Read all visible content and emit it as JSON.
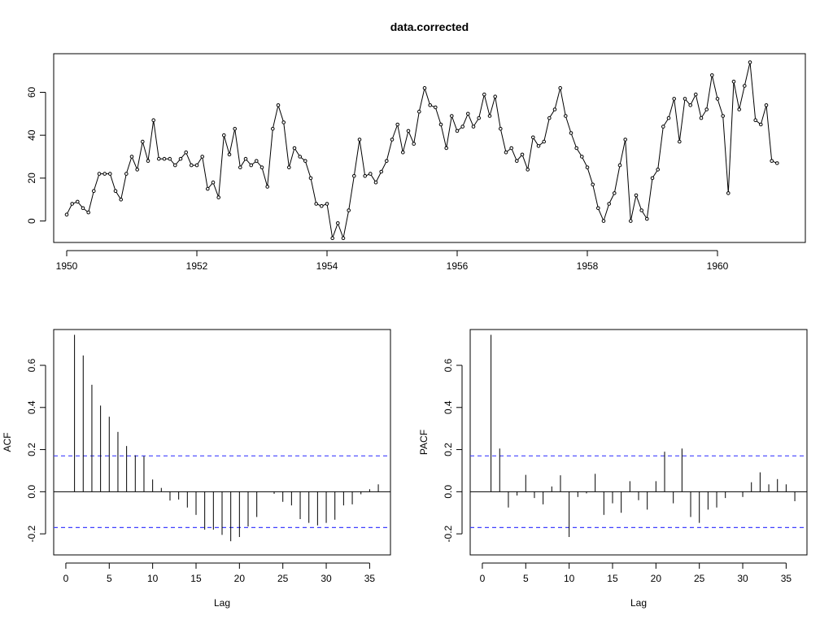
{
  "chart_data": [
    {
      "type": "line",
      "title": "data.corrected",
      "xlabel": "",
      "ylabel": "",
      "xlim": [
        1949.8,
        1961.35
      ],
      "ylim": [
        -10,
        78
      ],
      "x_ticks": [
        1950,
        1952,
        1954,
        1956,
        1958,
        1960
      ],
      "y_ticks": [
        0,
        20,
        40,
        60
      ],
      "markers": "open-circle",
      "series": [
        {
          "x_start": 1950.0,
          "x_step": 0.08333333,
          "values": [
            3,
            8,
            9,
            6,
            4,
            14,
            22,
            22,
            22,
            14,
            10,
            22,
            30,
            24,
            37,
            28,
            47,
            29,
            29,
            29,
            26,
            29,
            32,
            26,
            26,
            30,
            15,
            18,
            11,
            40,
            31,
            43,
            25,
            29,
            26,
            28,
            25,
            16,
            43,
            54,
            46,
            25,
            34,
            30,
            28,
            20,
            8,
            7,
            8,
            -8,
            -1,
            -8,
            5,
            21,
            38,
            21,
            22,
            18,
            23,
            28,
            38,
            45,
            32,
            42,
            36,
            51,
            62,
            54,
            53,
            45,
            34,
            49,
            42,
            44,
            50,
            44,
            48,
            59,
            49,
            58,
            43,
            32,
            34,
            28,
            31,
            24,
            39,
            35,
            37,
            48,
            52,
            62,
            49,
            41,
            34,
            30,
            25,
            17,
            6,
            0,
            8,
            13,
            26,
            38,
            0,
            12,
            5,
            1,
            20,
            24,
            44,
            48,
            57,
            37,
            57,
            54,
            59,
            48,
            52,
            68,
            57,
            49,
            13,
            65,
            52,
            63,
            74,
            47,
            45,
            54,
            28,
            27
          ]
        }
      ]
    },
    {
      "type": "bar",
      "subtype": "acf",
      "title": "",
      "xlabel": "Lag",
      "ylabel": "ACF",
      "xlim": [
        -1.4,
        37.4
      ],
      "ylim": [
        -0.3,
        0.77
      ],
      "x_ticks": [
        0,
        5,
        10,
        15,
        20,
        25,
        30,
        35
      ],
      "y_ticks": [
        -0.2,
        0.0,
        0.2,
        0.4,
        0.6
      ],
      "confidence_limit": 0.17,
      "confidence_color": "#4040ff",
      "lags": [
        1,
        2,
        3,
        4,
        5,
        6,
        7,
        8,
        9,
        10,
        11,
        12,
        13,
        14,
        15,
        16,
        17,
        18,
        19,
        20,
        21,
        22,
        23,
        24,
        25,
        26,
        27,
        28,
        29,
        30,
        31,
        32,
        33,
        34,
        35,
        36
      ],
      "values": [
        0.745,
        0.647,
        0.508,
        0.409,
        0.356,
        0.284,
        0.217,
        0.173,
        0.169,
        0.058,
        0.018,
        -0.042,
        -0.037,
        -0.075,
        -0.11,
        -0.18,
        -0.18,
        -0.205,
        -0.235,
        -0.215,
        -0.165,
        -0.12,
        0.0,
        -0.01,
        -0.048,
        -0.065,
        -0.13,
        -0.148,
        -0.16,
        -0.148,
        -0.133,
        -0.065,
        -0.06,
        -0.012,
        0.012,
        0.035
      ]
    },
    {
      "type": "bar",
      "subtype": "pacf",
      "title": "",
      "xlabel": "Lag",
      "ylabel": "PACF",
      "xlim": [
        -1.4,
        37.4
      ],
      "ylim": [
        -0.3,
        0.77
      ],
      "x_ticks": [
        0,
        5,
        10,
        15,
        20,
        25,
        30,
        35
      ],
      "y_ticks": [
        -0.2,
        0.0,
        0.2,
        0.4,
        0.6
      ],
      "confidence_limit": 0.17,
      "confidence_color": "#4040ff",
      "lags": [
        1,
        2,
        3,
        4,
        5,
        6,
        7,
        8,
        9,
        10,
        11,
        12,
        13,
        14,
        15,
        16,
        17,
        18,
        19,
        20,
        21,
        22,
        23,
        24,
        25,
        26,
        27,
        28,
        29,
        30,
        31,
        32,
        33,
        34,
        35,
        36
      ],
      "values": [
        0.745,
        0.205,
        -0.075,
        -0.018,
        0.08,
        -0.03,
        -0.06,
        0.025,
        0.078,
        -0.215,
        -0.025,
        -0.008,
        0.085,
        -0.11,
        -0.055,
        -0.1,
        0.05,
        -0.04,
        -0.085,
        0.05,
        0.19,
        -0.055,
        0.205,
        -0.12,
        -0.148,
        -0.085,
        -0.075,
        -0.03,
        0.0,
        -0.025,
        0.045,
        0.092,
        0.035,
        0.06,
        0.035,
        -0.045
      ]
    }
  ]
}
